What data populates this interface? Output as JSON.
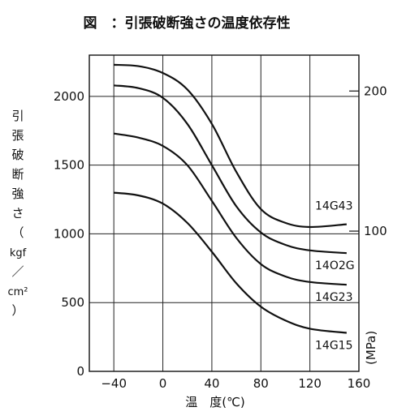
{
  "chart_data": {
    "type": "line",
    "title": "図　：引張破断強さの温度依存性",
    "xlabel": "温　度(℃)",
    "ylabel_chars": [
      "引",
      "張",
      "破",
      "断",
      "強",
      "さ",
      "（",
      "kgf",
      "／",
      "cm²",
      "）"
    ],
    "y2label": "(MPa)",
    "xlim": [
      -60,
      160
    ],
    "ylim": [
      0,
      2300
    ],
    "x_ticks": [
      -40,
      0,
      40,
      80,
      120,
      160
    ],
    "x_tick_labels": [
      "−40",
      "0",
      "40",
      "80",
      "120",
      "160"
    ],
    "y_ticks": [
      0,
      500,
      1000,
      1500,
      2000
    ],
    "y_tick_labels": [
      "0",
      "500",
      "1000",
      "1500",
      "2000"
    ],
    "y2_ticks": [
      {
        "value": 1020,
        "label": "100"
      },
      {
        "value": 2039,
        "label": "200"
      }
    ],
    "grid": true,
    "series": [
      {
        "name": "14G43",
        "x": [
          -40,
          -20,
          0,
          20,
          40,
          60,
          80,
          100,
          120,
          150
        ],
        "values": [
          2230,
          2220,
          2170,
          2050,
          1800,
          1450,
          1180,
          1080,
          1050,
          1070
        ]
      },
      {
        "name": "14O2G",
        "x": [
          -40,
          -20,
          0,
          20,
          40,
          60,
          80,
          100,
          120,
          150
        ],
        "values": [
          2080,
          2060,
          1990,
          1800,
          1500,
          1200,
          1010,
          920,
          880,
          860
        ]
      },
      {
        "name": "14G23",
        "x": [
          -40,
          -20,
          0,
          20,
          40,
          60,
          80,
          100,
          120,
          150
        ],
        "values": [
          1730,
          1700,
          1640,
          1500,
          1240,
          970,
          780,
          690,
          650,
          630
        ]
      },
      {
        "name": "14G15",
        "x": [
          -40,
          -20,
          0,
          20,
          40,
          60,
          80,
          100,
          120,
          150
        ],
        "values": [
          1300,
          1280,
          1220,
          1080,
          870,
          640,
          470,
          370,
          310,
          280
        ]
      }
    ]
  }
}
